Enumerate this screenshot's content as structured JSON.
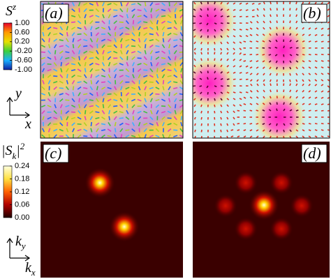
{
  "colorbar_sz": {
    "symbol": "S",
    "superscript": "z",
    "range": [
      -1,
      1
    ],
    "ticks": [
      {
        "value": 1,
        "label": "1.00"
      },
      {
        "value": 0.6,
        "label": "0.60"
      },
      {
        "value": 0.2,
        "label": "0.20"
      },
      {
        "value": -0.2,
        "label": "-0.20"
      },
      {
        "value": -0.6,
        "label": "-0.60"
      },
      {
        "value": -1,
        "label": "-1.00"
      }
    ]
  },
  "axes_real": {
    "vertical": "y",
    "horizontal": "x"
  },
  "colorbar_sk": {
    "symbol": "|S",
    "subscript": "k",
    "close": "|",
    "superscript": "2",
    "range": [
      0,
      0.24
    ],
    "ticks": [
      {
        "value": 0.24,
        "label": "0.24"
      },
      {
        "value": 0.18,
        "label": "0.18"
      },
      {
        "value": 0.12,
        "label": "0.12"
      },
      {
        "value": 0.06,
        "label": "0.06"
      },
      {
        "value": 0,
        "label": "0.00"
      }
    ]
  },
  "axes_reciprocal": {
    "vertical": "k",
    "vertical_subscript": "y",
    "horizontal": "k",
    "horizontal_subscript": "x"
  },
  "panels": [
    {
      "label": "(a)"
    },
    {
      "label": "(b)"
    },
    {
      "label": "(c)"
    },
    {
      "label": "(d)"
    }
  ]
}
